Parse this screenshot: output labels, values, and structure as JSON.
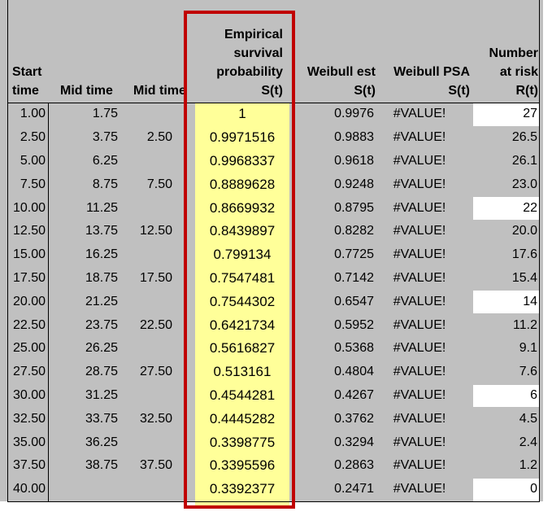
{
  "headers": {
    "start_time": "Start\ntime",
    "mid_time_1": "Mid time",
    "mid_time_2": "Mid time",
    "empirical": "Empirical\nsurvival\nprobability\nS(t)",
    "weibull_est": "Weibull est\nS(t)",
    "weibull_psa": "Weibull PSA\nS(t)",
    "number_at_risk": "Number\nat risk\nR(t)"
  },
  "rows": [
    {
      "start": "1.00",
      "mid1": "1.75",
      "mid2": "",
      "emp": "1",
      "west": "0.9976",
      "wpsa": "#VALUE!",
      "risk": "27"
    },
    {
      "start": "2.50",
      "mid1": "3.75",
      "mid2": "2.50",
      "emp": "0.9971516",
      "west": "0.9883",
      "wpsa": "#VALUE!",
      "risk": "26.5"
    },
    {
      "start": "5.00",
      "mid1": "6.25",
      "mid2": "",
      "emp": "0.9968337",
      "west": "0.9618",
      "wpsa": "#VALUE!",
      "risk": "26.1"
    },
    {
      "start": "7.50",
      "mid1": "8.75",
      "mid2": "7.50",
      "emp": "0.8889628",
      "west": "0.9248",
      "wpsa": "#VALUE!",
      "risk": "23.0"
    },
    {
      "start": "10.00",
      "mid1": "11.25",
      "mid2": "",
      "emp": "0.8669932",
      "west": "0.8795",
      "wpsa": "#VALUE!",
      "risk": "22"
    },
    {
      "start": "12.50",
      "mid1": "13.75",
      "mid2": "12.50",
      "emp": "0.8439897",
      "west": "0.8282",
      "wpsa": "#VALUE!",
      "risk": "20.0"
    },
    {
      "start": "15.00",
      "mid1": "16.25",
      "mid2": "",
      "emp": "0.799134",
      "west": "0.7725",
      "wpsa": "#VALUE!",
      "risk": "17.6"
    },
    {
      "start": "17.50",
      "mid1": "18.75",
      "mid2": "17.50",
      "emp": "0.7547481",
      "west": "0.7142",
      "wpsa": "#VALUE!",
      "risk": "15.4"
    },
    {
      "start": "20.00",
      "mid1": "21.25",
      "mid2": "",
      "emp": "0.7544302",
      "west": "0.6547",
      "wpsa": "#VALUE!",
      "risk": "14"
    },
    {
      "start": "22.50",
      "mid1": "23.75",
      "mid2": "22.50",
      "emp": "0.6421734",
      "west": "0.5952",
      "wpsa": "#VALUE!",
      "risk": "11.2"
    },
    {
      "start": "25.00",
      "mid1": "26.25",
      "mid2": "",
      "emp": "0.5616827",
      "west": "0.5368",
      "wpsa": "#VALUE!",
      "risk": "9.1"
    },
    {
      "start": "27.50",
      "mid1": "28.75",
      "mid2": "27.50",
      "emp": "0.513161",
      "west": "0.4804",
      "wpsa": "#VALUE!",
      "risk": "7.6"
    },
    {
      "start": "30.00",
      "mid1": "31.25",
      "mid2": "",
      "emp": "0.4544281",
      "west": "0.4267",
      "wpsa": "#VALUE!",
      "risk": "6"
    },
    {
      "start": "32.50",
      "mid1": "33.75",
      "mid2": "32.50",
      "emp": "0.4445282",
      "west": "0.3762",
      "wpsa": "#VALUE!",
      "risk": "4.5"
    },
    {
      "start": "35.00",
      "mid1": "36.25",
      "mid2": "",
      "emp": "0.3398775",
      "west": "0.3294",
      "wpsa": "#VALUE!",
      "risk": "2.4"
    },
    {
      "start": "37.50",
      "mid1": "38.75",
      "mid2": "37.50",
      "emp": "0.3395596",
      "west": "0.2863",
      "wpsa": "#VALUE!",
      "risk": "1.2"
    },
    {
      "start": "40.00",
      "mid1": "",
      "mid2": "",
      "emp": "0.3392377",
      "west": "0.2471",
      "wpsa": "#VALUE!",
      "risk": "0"
    }
  ],
  "white_risk_rows": [
    0,
    4,
    8,
    12,
    16
  ],
  "colors": {
    "sheet_gray": "#c0c0c0",
    "highlight_yellow": "#ffff99",
    "highlight_border": "#c00000",
    "white_cell": "#ffffff"
  }
}
